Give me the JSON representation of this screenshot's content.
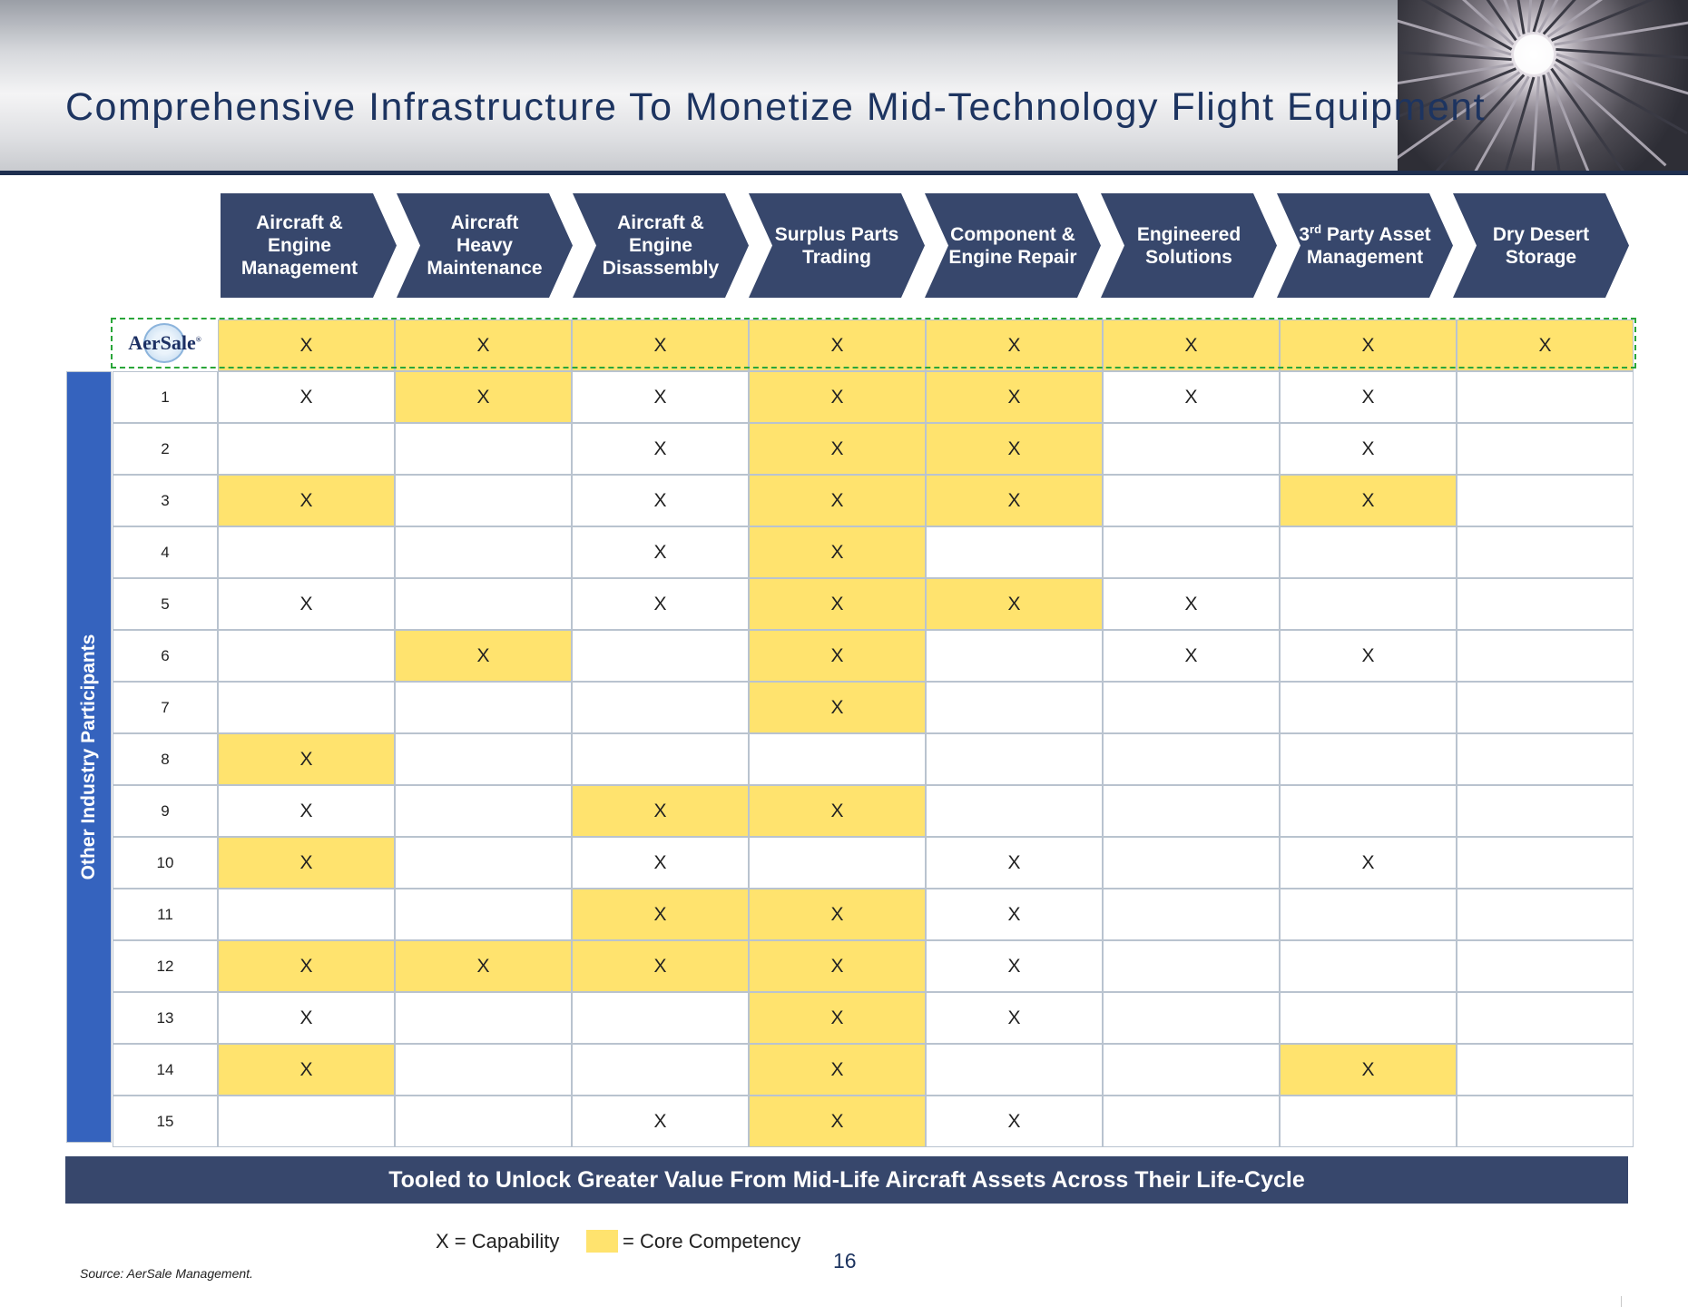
{
  "title": "Comprehensive Infrastructure To Monetize Mid-Technology Flight Equipment",
  "columns": [
    {
      "label": "Aircraft &\nEngine\nManagement"
    },
    {
      "label": "Aircraft\nHeavy\nMaintenance"
    },
    {
      "label": "Aircraft & Engine\nDisassembly"
    },
    {
      "label": "Surplus Parts\nTrading"
    },
    {
      "label": "Component &\nEngine Repair"
    },
    {
      "label": "Engineered\nSolutions"
    },
    {
      "label_main": "3",
      "label_sup": "rd",
      "label_rest": " Party Asset\nManagement"
    },
    {
      "label": "Dry Desert\nStorage"
    }
  ],
  "aersale_row": {
    "logo_text": "AerSale",
    "logo_mark": "®",
    "cells": [
      "X",
      "X",
      "X",
      "X",
      "X",
      "X",
      "X",
      "X"
    ],
    "core": [
      true,
      true,
      true,
      true,
      true,
      true,
      true,
      true
    ]
  },
  "participants_label": "Other Industry Participants",
  "rows": [
    {
      "label": "1",
      "cells": [
        "X",
        "X",
        "X",
        "X",
        "X",
        "X",
        "X",
        ""
      ],
      "core": [
        false,
        true,
        false,
        true,
        true,
        false,
        false,
        false
      ]
    },
    {
      "label": "2",
      "cells": [
        "",
        "",
        "X",
        "X",
        "X",
        "",
        "X",
        ""
      ],
      "core": [
        false,
        false,
        false,
        true,
        true,
        false,
        false,
        false
      ]
    },
    {
      "label": "3",
      "cells": [
        "X",
        "",
        "X",
        "X",
        "X",
        "",
        "X",
        ""
      ],
      "core": [
        true,
        false,
        false,
        true,
        true,
        false,
        true,
        false
      ]
    },
    {
      "label": "4",
      "cells": [
        "",
        "",
        "X",
        "X",
        "",
        "",
        "",
        ""
      ],
      "core": [
        false,
        false,
        false,
        true,
        false,
        false,
        false,
        false
      ]
    },
    {
      "label": "5",
      "cells": [
        "X",
        "",
        "X",
        "X",
        "X",
        "X",
        "",
        ""
      ],
      "core": [
        false,
        false,
        false,
        true,
        true,
        false,
        false,
        false
      ]
    },
    {
      "label": "6",
      "cells": [
        "",
        "X",
        "",
        "X",
        "",
        "X",
        "X",
        ""
      ],
      "core": [
        false,
        true,
        false,
        true,
        false,
        false,
        false,
        false
      ]
    },
    {
      "label": "7",
      "cells": [
        "",
        "",
        "",
        "X",
        "",
        "",
        "",
        ""
      ],
      "core": [
        false,
        false,
        false,
        true,
        false,
        false,
        false,
        false
      ]
    },
    {
      "label": "8",
      "cells": [
        "X",
        "",
        "",
        "",
        "",
        "",
        "",
        ""
      ],
      "core": [
        true,
        false,
        false,
        false,
        false,
        false,
        false,
        false
      ]
    },
    {
      "label": "9",
      "cells": [
        "X",
        "",
        "X",
        "X",
        "",
        "",
        "",
        ""
      ],
      "core": [
        false,
        false,
        true,
        true,
        false,
        false,
        false,
        false
      ]
    },
    {
      "label": "10",
      "cells": [
        "X",
        "",
        "X",
        "",
        "X",
        "",
        "X",
        ""
      ],
      "core": [
        true,
        false,
        false,
        false,
        false,
        false,
        false,
        false
      ]
    },
    {
      "label": "11",
      "cells": [
        "",
        "",
        "X",
        "X",
        "X",
        "",
        "",
        ""
      ],
      "core": [
        false,
        false,
        true,
        true,
        false,
        false,
        false,
        false
      ]
    },
    {
      "label": "12",
      "cells": [
        "X",
        "X",
        "X",
        "X",
        "X",
        "",
        "",
        ""
      ],
      "core": [
        true,
        true,
        true,
        true,
        false,
        false,
        false,
        false
      ]
    },
    {
      "label": "13",
      "cells": [
        "X",
        "",
        "",
        "X",
        "X",
        "",
        "",
        ""
      ],
      "core": [
        false,
        false,
        false,
        true,
        false,
        false,
        false,
        false
      ]
    },
    {
      "label": "14",
      "cells": [
        "X",
        "",
        "",
        "X",
        "",
        "",
        "X",
        ""
      ],
      "core": [
        true,
        false,
        false,
        true,
        false,
        false,
        true,
        false
      ]
    },
    {
      "label": "15",
      "cells": [
        "",
        "",
        "X",
        "X",
        "X",
        "",
        "",
        ""
      ],
      "core": [
        false,
        false,
        false,
        true,
        false,
        false,
        false,
        false
      ]
    }
  ],
  "banner": "Tooled to Unlock Greater Value From Mid-Life Aircraft Assets Across Their Life-Cycle",
  "legend": {
    "capability": "X = Capability",
    "core_competency": "= Core Competency",
    "core_color": "#ffe36e"
  },
  "page_number": "16",
  "source": "Source: AerSale Management.",
  "colors": {
    "navy": "#37476c",
    "title": "#1d3460",
    "sidebar_blue": "#3563be",
    "dashed_green": "#2aa63a"
  }
}
